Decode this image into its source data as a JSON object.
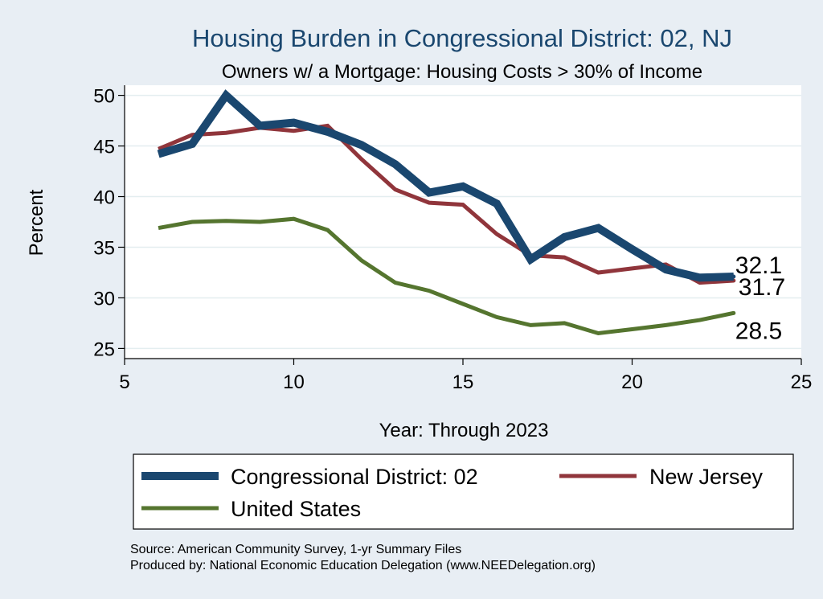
{
  "chart_data": {
    "type": "line",
    "title": "Housing Burden in Congressional District:  02, NJ",
    "subtitle": "Owners w/ a Mortgage: Housing Costs > 30% of Income",
    "xlabel": "Year: Through 2023",
    "ylabel": "Percent",
    "xlim": [
      5,
      25
    ],
    "ylim": [
      24,
      51
    ],
    "xticks": [
      5,
      10,
      15,
      20,
      25
    ],
    "yticks": [
      25,
      30,
      35,
      40,
      45,
      50
    ],
    "grid": true,
    "legend_position": "bottom",
    "series": [
      {
        "name": "Congressional District:  02",
        "color": "#1a476f",
        "x": [
          6,
          7,
          8,
          9,
          10,
          11,
          12,
          13,
          14,
          15,
          16,
          17,
          18,
          19,
          20,
          21,
          22,
          23
        ],
        "values": [
          44.2,
          45.2,
          50.0,
          47.0,
          47.3,
          46.4,
          45.1,
          43.2,
          40.4,
          41.0,
          39.3,
          33.8,
          36.0,
          36.9,
          34.8,
          32.8,
          32.0,
          32.1
        ],
        "end_label": "32.1"
      },
      {
        "name": "New Jersey",
        "color": "#90353b",
        "x": [
          6,
          7,
          8,
          9,
          10,
          11,
          12,
          13,
          14,
          15,
          16,
          17,
          18,
          19,
          20,
          21,
          22,
          23
        ],
        "values": [
          44.7,
          46.1,
          46.3,
          46.8,
          46.5,
          47.0,
          43.7,
          40.7,
          39.4,
          39.2,
          36.3,
          34.2,
          34.0,
          32.5,
          32.9,
          33.3,
          31.5,
          31.7
        ],
        "end_label": "31.7"
      },
      {
        "name": "United States",
        "color": "#55752f",
        "x": [
          6,
          7,
          8,
          9,
          10,
          11,
          12,
          13,
          14,
          15,
          16,
          17,
          18,
          19,
          20,
          21,
          22,
          23
        ],
        "values": [
          36.9,
          37.5,
          37.6,
          37.5,
          37.8,
          36.7,
          33.7,
          31.5,
          30.7,
          29.4,
          28.1,
          27.3,
          27.5,
          26.5,
          26.9,
          27.3,
          27.8,
          28.5
        ],
        "end_label": "28.5"
      }
    ],
    "notes": [
      "Source: American Community Survey, 1-yr Summary Files",
      "Produced by: National Economic Education Delegation (www.NEEDelegation.org)"
    ]
  },
  "colors": {
    "background": "#e8eef4",
    "plot_area": "#ffffff",
    "grid": "#eaf2f3",
    "title": "#1a476f"
  }
}
